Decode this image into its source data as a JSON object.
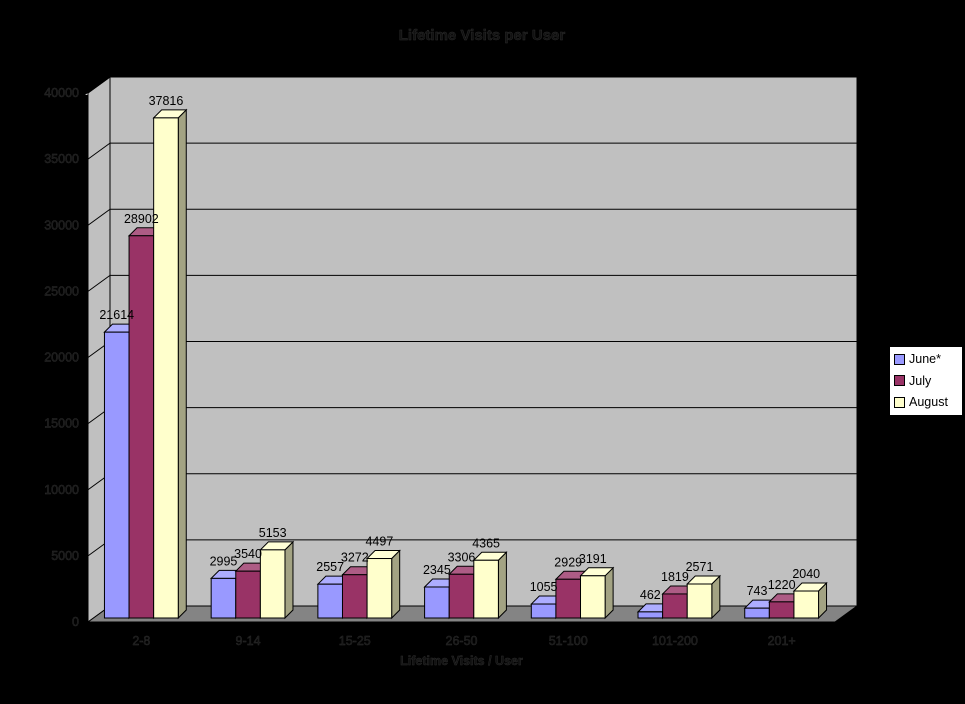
{
  "chart_data": {
    "type": "bar",
    "style": "3d-clustered-column",
    "title": "Lifetime Visits per User",
    "xlabel": "Lifetime Visits / User",
    "ylabel": "",
    "categories": [
      "2-8",
      "9-14",
      "15-25",
      "26-50",
      "51-100",
      "101-200",
      "201+"
    ],
    "series": [
      {
        "name": "June*",
        "color": "#9999FF",
        "values": [
          21614,
          2995,
          2557,
          2345,
          1055,
          462,
          743
        ]
      },
      {
        "name": "July",
        "color": "#993366",
        "values": [
          28902,
          3540,
          3272,
          3306,
          2929,
          1819,
          1220
        ]
      },
      {
        "name": "August",
        "color": "#FFFFCC",
        "values": [
          37816,
          5153,
          4497,
          4365,
          3191,
          2571,
          2040
        ]
      }
    ],
    "ylim": [
      0,
      40000
    ],
    "ytick_step": 5000,
    "yticks": [
      0,
      5000,
      10000,
      15000,
      20000,
      25000,
      30000,
      35000,
      40000
    ],
    "grid": true,
    "data_labels": true,
    "legend_position": "right"
  },
  "colors": {
    "background": "#000000",
    "wall": "#C0C0C0",
    "wall_edge_highlight": "#D4D4D4",
    "floor": "#848484",
    "gridline": "#000000",
    "bar_border": "#000000",
    "legend_background": "#FFFFFF",
    "legend_border": "#000000",
    "data_label_text": "#000000"
  }
}
